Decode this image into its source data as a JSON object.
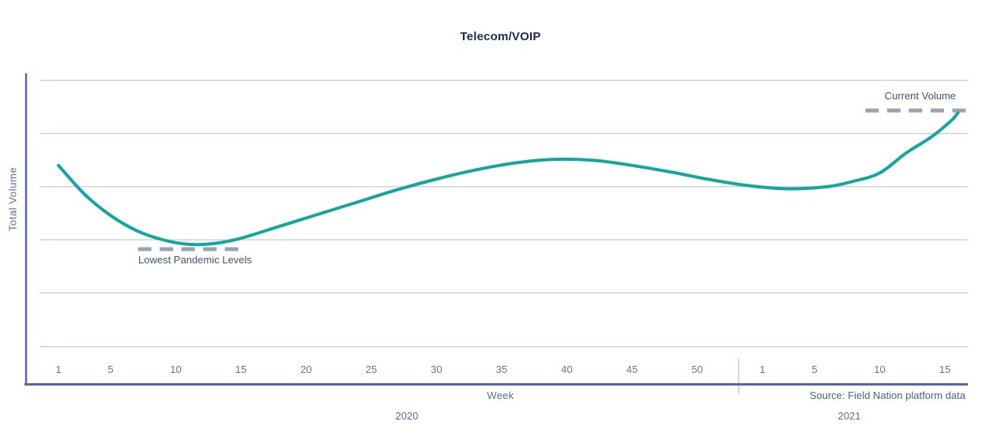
{
  "header": {
    "title": "Telecom/VOIP"
  },
  "axes": {
    "y_label": "Total Volume",
    "x_label": "Week",
    "year_left": "2020",
    "year_right": "2021"
  },
  "footer": {
    "source": "Source: Field Nation platform data"
  },
  "annotations": {
    "current": {
      "label": "Current Volume"
    },
    "lowest": {
      "label": "Lowest Pandemic Levels"
    }
  },
  "colors": {
    "line": "#12a6a0",
    "axis": "#5562ae",
    "grid": "#c5ccd8",
    "separator": "#c5ccd8",
    "dash": "#9aa4b1",
    "title_text": "#1c2b4d",
    "tick_text": "#66739c",
    "annotation_text": "#44536f"
  },
  "chart_data": {
    "type": "line",
    "title": "Telecom/VOIP",
    "xlabel": "Week",
    "ylabel": "Total Volume",
    "legend": "none",
    "grid": "horizontal only",
    "y_axis_tick_labels": "none (unlabeled relative volume axis, 0-100 index)",
    "ylim": [
      0,
      105
    ],
    "gridlines_v": [
      100,
      82.5,
      65,
      47.5,
      30,
      12.3
    ],
    "x_ticks": [
      {
        "label": "1",
        "wi": 1,
        "year": 2020
      },
      {
        "label": "5",
        "wi": 5,
        "year": 2020
      },
      {
        "label": "10",
        "wi": 10,
        "year": 2020
      },
      {
        "label": "15",
        "wi": 15,
        "year": 2020
      },
      {
        "label": "20",
        "wi": 20,
        "year": 2020
      },
      {
        "label": "25",
        "wi": 25,
        "year": 2020
      },
      {
        "label": "30",
        "wi": 30,
        "year": 2020
      },
      {
        "label": "35",
        "wi": 35,
        "year": 2020
      },
      {
        "label": "40",
        "wi": 40,
        "year": 2020
      },
      {
        "label": "45",
        "wi": 45,
        "year": 2020
      },
      {
        "label": "50",
        "wi": 50,
        "year": 2020
      },
      {
        "label": "1",
        "wi": 55,
        "year": 2021
      },
      {
        "label": "5",
        "wi": 59,
        "year": 2021
      },
      {
        "label": "10",
        "wi": 64,
        "year": 2021
      },
      {
        "label": "15",
        "wi": 69,
        "year": 2021
      }
    ],
    "year_boundary_after_week_index": 53,
    "series": [
      {
        "name": "Telecom/VOIP Total Volume",
        "units": "relative volume index (0-100, axis unlabeled)",
        "points": [
          {
            "wi": 1,
            "v": 72.0
          },
          {
            "wi": 3,
            "v": 62.5
          },
          {
            "wi": 5,
            "v": 55.5
          },
          {
            "wi": 7,
            "v": 50.5
          },
          {
            "wi": 9,
            "v": 47.5
          },
          {
            "wi": 11,
            "v": 46.0
          },
          {
            "wi": 13,
            "v": 46.3
          },
          {
            "wi": 15,
            "v": 48.0
          },
          {
            "wi": 18,
            "v": 52.0
          },
          {
            "wi": 21,
            "v": 56.0
          },
          {
            "wi": 24,
            "v": 60.0
          },
          {
            "wi": 27,
            "v": 64.0
          },
          {
            "wi": 30,
            "v": 67.5
          },
          {
            "wi": 33,
            "v": 70.5
          },
          {
            "wi": 36,
            "v": 72.8
          },
          {
            "wi": 39,
            "v": 74.0
          },
          {
            "wi": 42,
            "v": 73.7
          },
          {
            "wi": 45,
            "v": 72.0
          },
          {
            "wi": 48,
            "v": 69.8
          },
          {
            "wi": 51,
            "v": 67.3
          },
          {
            "wi": 54,
            "v": 65.3
          },
          {
            "wi": 57,
            "v": 64.3
          },
          {
            "wi": 60,
            "v": 65.0
          },
          {
            "wi": 62,
            "v": 66.8
          },
          {
            "wi": 64,
            "v": 69.5
          },
          {
            "wi": 66,
            "v": 76.0
          },
          {
            "wi": 68,
            "v": 81.5
          },
          {
            "wi": 69.5,
            "v": 86.8
          },
          {
            "wi": 70,
            "v": 89.3
          }
        ]
      }
    ],
    "annotations": [
      {
        "label": "Current Volume",
        "style": "dashed-line",
        "v": 90.1,
        "wi_start": 62.9,
        "wi_end": 71.1
      },
      {
        "label": "Lowest Pandemic Levels",
        "style": "dashed-line",
        "v": 44.4,
        "wi_start": 7.1,
        "wi_end": 15.3
      }
    ]
  }
}
